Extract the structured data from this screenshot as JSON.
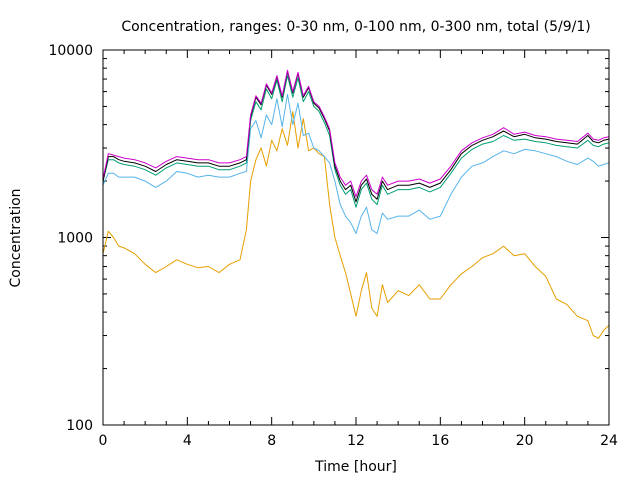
{
  "chart_data": {
    "type": "line",
    "title": "Concentration, ranges: 0-30 nm, 0-100 nm, 0-300 nm, total (5/9/1)",
    "xlabel": "Time [hour]",
    "ylabel": "Concentration",
    "xlim": [
      0,
      24
    ],
    "ylim": [
      100,
      10000
    ],
    "yscale": "log",
    "grid": false,
    "x_ticks": [
      0,
      4,
      8,
      12,
      16,
      20,
      24
    ],
    "x_tick_labels": [
      "0",
      "4",
      "8",
      "12",
      "16",
      "20",
      "24"
    ],
    "y_ticks": [
      100,
      1000,
      10000
    ],
    "y_tick_labels": [
      "100",
      "1000",
      "10000"
    ],
    "x": [
      0,
      0.25,
      0.5,
      0.75,
      1,
      1.5,
      2,
      2.5,
      3,
      3.5,
      4,
      4.5,
      5,
      5.5,
      6,
      6.5,
      6.8,
      7,
      7.25,
      7.5,
      7.75,
      8,
      8.25,
      8.5,
      8.75,
      9,
      9.25,
      9.5,
      9.75,
      10,
      10.25,
      10.5,
      10.75,
      11,
      11.25,
      11.5,
      11.75,
      12,
      12.25,
      12.5,
      12.75,
      13,
      13.25,
      13.5,
      14,
      14.5,
      15,
      15.5,
      16,
      16.5,
      17,
      17.5,
      18,
      18.5,
      19,
      19.5,
      20,
      20.5,
      21,
      21.5,
      22,
      22.5,
      23,
      23.25,
      23.5,
      23.75,
      24
    ],
    "series": [
      {
        "color": "#e69f00",
        "values": [
          820,
          1080,
          1000,
          900,
          880,
          820,
          720,
          650,
          700,
          760,
          720,
          690,
          700,
          650,
          720,
          760,
          1100,
          2000,
          2600,
          3000,
          2400,
          3300,
          2900,
          3800,
          3100,
          4700,
          3000,
          4300,
          2900,
          3000,
          2800,
          2700,
          1500,
          1000,
          800,
          650,
          500,
          380,
          520,
          650,
          420,
          380,
          560,
          450,
          520,
          490,
          560,
          470,
          470,
          560,
          640,
          700,
          780,
          820,
          900,
          800,
          820,
          700,
          620,
          470,
          440,
          380,
          360,
          300,
          290,
          320,
          340
        ]
      },
      {
        "color": "#56b4e9",
        "values": [
          1900,
          2200,
          2200,
          2100,
          2100,
          2100,
          2000,
          1850,
          2000,
          2250,
          2200,
          2100,
          2150,
          2100,
          2100,
          2200,
          2250,
          3800,
          4200,
          3400,
          4500,
          4000,
          5500,
          3900,
          5800,
          4000,
          5200,
          3500,
          3600,
          3000,
          2900,
          2700,
          2500,
          2000,
          1500,
          1300,
          1200,
          1050,
          1300,
          1450,
          1100,
          1050,
          1350,
          1250,
          1300,
          1300,
          1400,
          1250,
          1300,
          1700,
          2100,
          2400,
          2500,
          2700,
          2900,
          2800,
          2950,
          2900,
          2800,
          2700,
          2550,
          2450,
          2650,
          2550,
          2400,
          2450,
          2500
        ]
      },
      {
        "color": "#009e73",
        "values": [
          2000,
          2600,
          2600,
          2500,
          2450,
          2400,
          2300,
          2150,
          2350,
          2500,
          2450,
          2400,
          2400,
          2300,
          2300,
          2400,
          2500,
          4200,
          5300,
          4800,
          6200,
          5500,
          6900,
          5300,
          7300,
          5600,
          7100,
          5300,
          6000,
          5000,
          4700,
          4100,
          3500,
          2300,
          1900,
          1700,
          1800,
          1450,
          1800,
          1950,
          1600,
          1500,
          1900,
          1700,
          1800,
          1800,
          1850,
          1750,
          1850,
          2200,
          2650,
          2950,
          3150,
          3250,
          3500,
          3300,
          3350,
          3250,
          3200,
          3100,
          3050,
          3000,
          3300,
          3100,
          3050,
          3150,
          3200
        ]
      },
      {
        "color": "#000000",
        "values": [
          2000,
          2700,
          2700,
          2600,
          2550,
          2500,
          2400,
          2250,
          2450,
          2600,
          2550,
          2500,
          2500,
          2400,
          2400,
          2500,
          2600,
          4400,
          5600,
          5100,
          6500,
          5800,
          7200,
          5600,
          7700,
          5900,
          7500,
          5600,
          6300,
          5200,
          4900,
          4300,
          3700,
          2400,
          2000,
          1800,
          1900,
          1550,
          1900,
          2050,
          1700,
          1600,
          2000,
          1800,
          1900,
          1900,
          1950,
          1850,
          1950,
          2300,
          2800,
          3100,
          3300,
          3450,
          3700,
          3450,
          3550,
          3400,
          3350,
          3250,
          3200,
          3150,
          3500,
          3250,
          3200,
          3300,
          3350
        ]
      },
      {
        "color": "#cc00cc",
        "values": [
          2050,
          2800,
          2750,
          2700,
          2650,
          2600,
          2500,
          2350,
          2550,
          2700,
          2650,
          2600,
          2600,
          2500,
          2500,
          2600,
          2700,
          4500,
          5700,
          5200,
          6600,
          5900,
          7300,
          5700,
          7800,
          6000,
          7600,
          5700,
          6400,
          5300,
          5000,
          4400,
          3800,
          2500,
          2100,
          1900,
          2000,
          1650,
          2000,
          2150,
          1800,
          1700,
          2100,
          1900,
          2000,
          2000,
          2050,
          1950,
          2050,
          2400,
          2900,
          3200,
          3400,
          3550,
          3850,
          3550,
          3650,
          3500,
          3450,
          3350,
          3300,
          3250,
          3600,
          3350,
          3300,
          3400,
          3450
        ]
      }
    ]
  }
}
